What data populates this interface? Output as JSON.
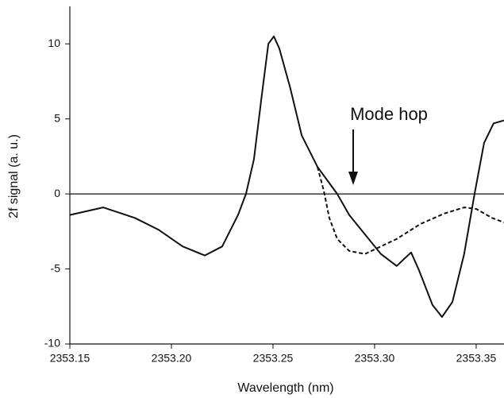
{
  "chart_data": {
    "type": "line",
    "xlabel": "Wavelength (nm)",
    "ylabel": "2f signal (a. u.)",
    "annotation": "Mode hop",
    "xlim": [
      2353.15,
      2353.3637
    ],
    "ylim": [
      -10,
      12.5
    ],
    "xticks": [
      2353.15,
      {
        "value": 2353.2,
        "label": "2353.20"
      },
      2353.25,
      {
        "value": 2353.3,
        "label": "2353.30"
      },
      2353.35
    ],
    "yticks": [
      -10,
      -5,
      0,
      5,
      10
    ],
    "series": [
      {
        "color": "#111111",
        "dash": false,
        "x": [
          2353.15,
          2353.1664,
          2353.182,
          2353.1938,
          2353.2055,
          2353.2164,
          2353.225,
          2353.2328,
          2353.2367,
          2353.2406,
          2353.2445,
          2353.2477,
          2353.2504,
          2353.2531,
          2353.2584,
          2353.2641,
          2353.2719,
          2353.2816,
          2353.2875,
          2353.2953,
          2353.3031,
          2353.3109,
          2353.3148,
          2353.318,
          2353.3219,
          2353.3285,
          2353.3332,
          2353.3383,
          2353.3441,
          2353.3492,
          2353.3539,
          2353.3586,
          2353.3637
        ],
        "values": [
          -1.4,
          -0.9,
          -1.6,
          -2.4,
          -3.5,
          -4.1,
          -3.5,
          -1.4,
          0,
          2.3,
          6.6,
          10,
          10.5,
          9.7,
          7.1,
          3.9,
          1.8,
          0,
          -1.4,
          -2.7,
          -4,
          -4.8,
          -4.3,
          -3.9,
          -5.1,
          -7.4,
          -8.2,
          -7.2,
          -4,
          0,
          3.4,
          4.7,
          4.9
        ]
      },
      {
        "color": "#111111",
        "dash": true,
        "x": [
          2353.2719,
          2353.275,
          2353.2777,
          2353.2816,
          2353.2875,
          2353.2953,
          2353.3031,
          2353.3109,
          2353.3226,
          2353.3344,
          2353.3441,
          2353.35,
          2353.3578,
          2353.3637
        ],
        "values": [
          1.8,
          0.2,
          -1.6,
          -3,
          -3.8,
          -4,
          -3.5,
          -3,
          -2,
          -1.3,
          -0.9,
          -1,
          -1.6,
          -1.9
        ]
      }
    ]
  }
}
